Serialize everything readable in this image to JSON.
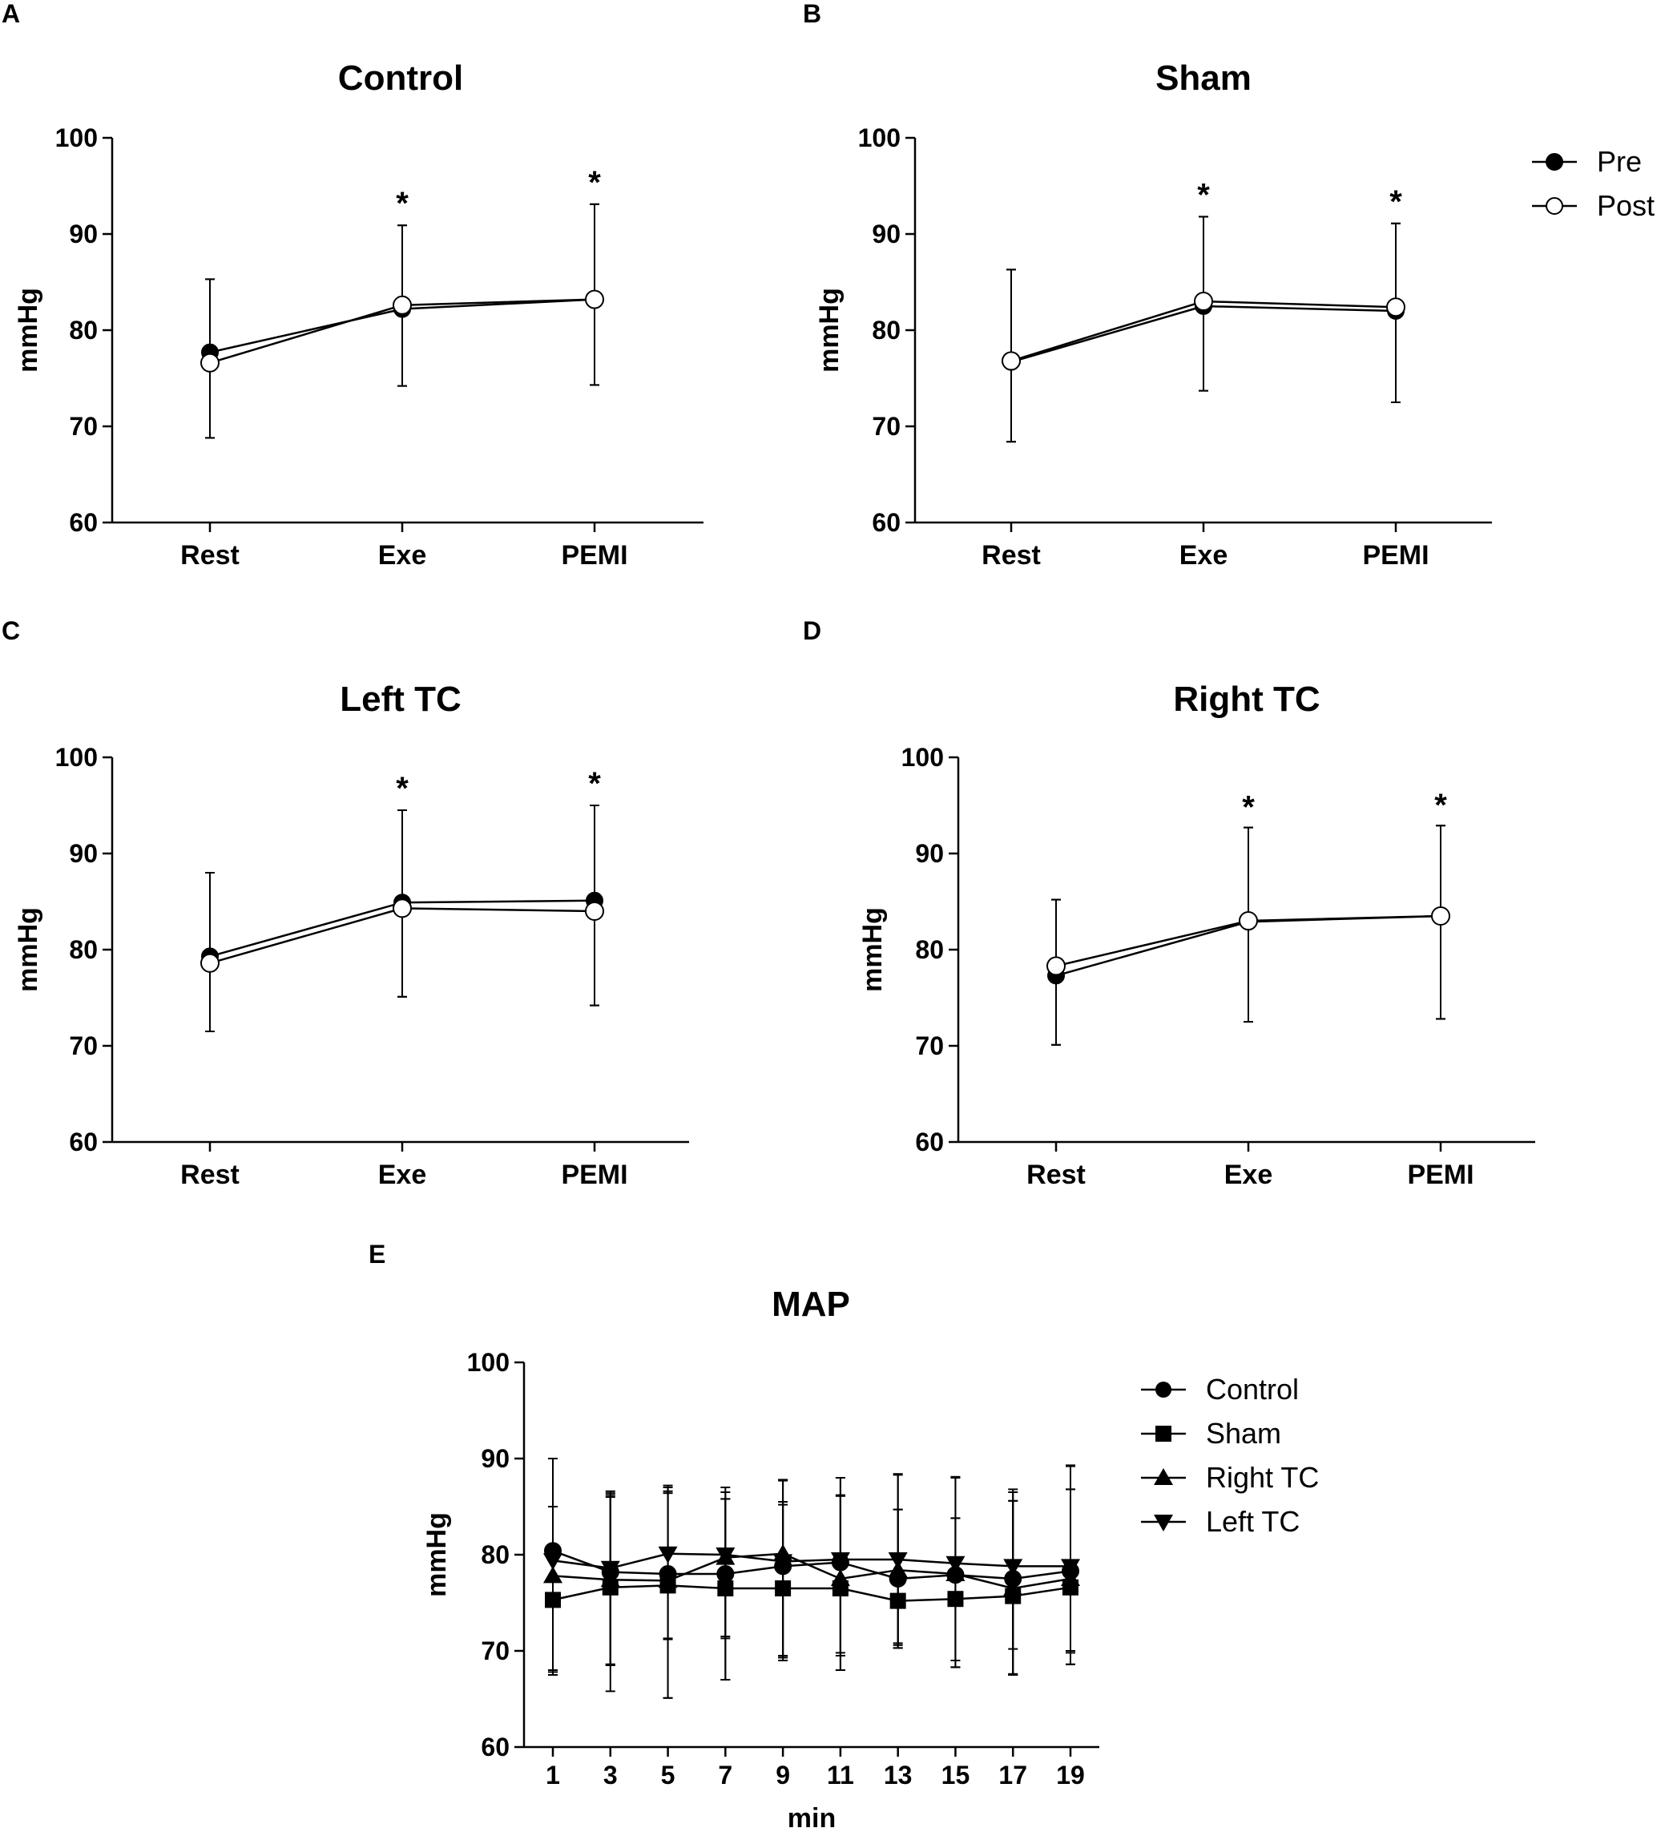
{
  "chart_data": [
    {
      "panel": "A",
      "type": "line",
      "title": "Control",
      "xlabel": "",
      "ylabel": "mmHg",
      "ylim": [
        60,
        100
      ],
      "yticks": [
        60,
        70,
        80,
        90,
        100
      ],
      "categories": [
        "Rest",
        "Exe",
        "PEMI"
      ],
      "significance": [
        "",
        "*",
        "*"
      ],
      "series": [
        {
          "name": "Pre",
          "marker": "filled-circle",
          "values": [
            77.7,
            82.2,
            83.2
          ],
          "err_low": [
            68.8,
            74.2,
            74.3
          ],
          "err_high": [
            85.3,
            90.9,
            93.1
          ]
        },
        {
          "name": "Post",
          "marker": "open-circle",
          "values": [
            76.6,
            82.6,
            83.2
          ],
          "err_low": [
            68.8,
            74.2,
            74.3
          ],
          "err_high": [
            85.3,
            90.9,
            93.1
          ]
        }
      ]
    },
    {
      "panel": "B",
      "type": "line",
      "title": "Sham",
      "xlabel": "",
      "ylabel": "mmHg",
      "ylim": [
        60,
        100
      ],
      "yticks": [
        60,
        70,
        80,
        90,
        100
      ],
      "categories": [
        "Rest",
        "Exe",
        "PEMI"
      ],
      "significance": [
        "",
        "*",
        "*"
      ],
      "series": [
        {
          "name": "Pre",
          "marker": "filled-circle",
          "values": [
            76.7,
            82.5,
            82.0
          ],
          "err_low": [
            68.4,
            73.7,
            72.5
          ],
          "err_high": [
            86.3,
            91.8,
            91.1
          ]
        },
        {
          "name": "Post",
          "marker": "open-circle",
          "values": [
            76.8,
            83.0,
            82.4
          ],
          "err_low": [
            68.4,
            73.7,
            72.5
          ],
          "err_high": [
            86.3,
            91.8,
            91.1
          ]
        }
      ]
    },
    {
      "panel": "C",
      "type": "line",
      "title": "Left TC",
      "xlabel": "",
      "ylabel": "mmHg",
      "ylim": [
        60,
        100
      ],
      "yticks": [
        60,
        70,
        80,
        90,
        100
      ],
      "categories": [
        "Rest",
        "Exe",
        "PEMI"
      ],
      "significance": [
        "",
        "*",
        "*"
      ],
      "series": [
        {
          "name": "Pre",
          "marker": "filled-circle",
          "values": [
            79.3,
            84.9,
            85.1
          ],
          "err_low": [
            71.5,
            75.1,
            74.2
          ],
          "err_high": [
            88.0,
            94.5,
            95.0
          ]
        },
        {
          "name": "Post",
          "marker": "open-circle",
          "values": [
            78.6,
            84.3,
            84.0
          ],
          "err_low": [
            71.5,
            75.1,
            74.2
          ],
          "err_high": [
            88.0,
            94.5,
            95.0
          ]
        }
      ]
    },
    {
      "panel": "D",
      "type": "line",
      "title": "Right TC",
      "xlabel": "",
      "ylabel": "mmHg",
      "ylim": [
        60,
        100
      ],
      "yticks": [
        60,
        70,
        80,
        90,
        100
      ],
      "categories": [
        "Rest",
        "Exe",
        "PEMI"
      ],
      "significance": [
        "",
        "*",
        "*"
      ],
      "series": [
        {
          "name": "Pre",
          "marker": "filled-circle",
          "values": [
            77.3,
            82.9,
            83.5
          ],
          "err_low": [
            70.1,
            72.5,
            72.8
          ],
          "err_high": [
            85.2,
            92.7,
            92.9
          ]
        },
        {
          "name": "Post",
          "marker": "open-circle",
          "values": [
            78.3,
            83.0,
            83.5
          ],
          "err_low": [
            70.1,
            72.5,
            72.8
          ],
          "err_high": [
            85.2,
            92.7,
            92.9
          ]
        }
      ]
    },
    {
      "panel": "E",
      "type": "line",
      "title": "MAP",
      "xlabel": "min",
      "ylabel": "mmHg",
      "ylim": [
        60,
        100
      ],
      "yticks": [
        60,
        70,
        80,
        90,
        100
      ],
      "x": [
        1,
        3,
        5,
        7,
        9,
        11,
        13,
        15,
        17,
        19
      ],
      "series": [
        {
          "name": "Control",
          "marker": "circle",
          "values": [
            80.4,
            78.2,
            78.0,
            78.0,
            78.8,
            79.2,
            77.5,
            77.9,
            77.5,
            78.3
          ],
          "err_low": [
            67.5,
            68.5,
            71.2,
            71.3,
            69.3,
            69.5,
            70.3,
            68.3,
            67.5,
            68.6
          ],
          "err_high": [
            90.0,
            86.0,
            87.0,
            86.5,
            87.7,
            88.0,
            88.3,
            88.0,
            86.5,
            89.2
          ]
        },
        {
          "name": "Sham",
          "marker": "square",
          "values": [
            75.3,
            76.6,
            76.8,
            76.5,
            76.5,
            76.5,
            75.2,
            75.4,
            75.7,
            76.6
          ],
          "err_low": [
            68.0,
            65.8,
            65.1,
            67.0,
            69.5,
            68.0,
            70.8,
            69.0,
            67.6,
            70.0
          ],
          "err_high": [
            85.0,
            86.4,
            86.4,
            85.8,
            85.2,
            86.1,
            84.7,
            83.8,
            85.6,
            86.8
          ]
        },
        {
          "name": "Right TC",
          "marker": "triangle-up",
          "values": [
            77.8,
            77.4,
            77.3,
            79.7,
            80.1,
            77.5,
            78.4,
            78.0,
            76.5,
            77.5
          ],
          "err_low": [
            67.8,
            68.6,
            71.3,
            71.5,
            69.0,
            69.8,
            70.6,
            68.3,
            70.2,
            68.6
          ],
          "err_high": [
            85.0,
            86.2,
            86.6,
            85.8,
            85.5,
            86.2,
            84.7,
            83.8,
            85.6,
            86.8
          ]
        },
        {
          "name": "Left TC",
          "marker": "triangle-down",
          "values": [
            79.4,
            78.6,
            80.1,
            80.0,
            79.3,
            79.5,
            79.5,
            79.1,
            78.8,
            78.8
          ],
          "err_low": [
            68.0,
            68.6,
            65.1,
            67.0,
            69.3,
            68.0,
            70.3,
            68.3,
            67.5,
            69.8
          ],
          "err_high": [
            90.0,
            86.6,
            87.2,
            87.0,
            87.8,
            88.0,
            88.4,
            88.1,
            86.8,
            89.3
          ]
        }
      ]
    }
  ]
}
